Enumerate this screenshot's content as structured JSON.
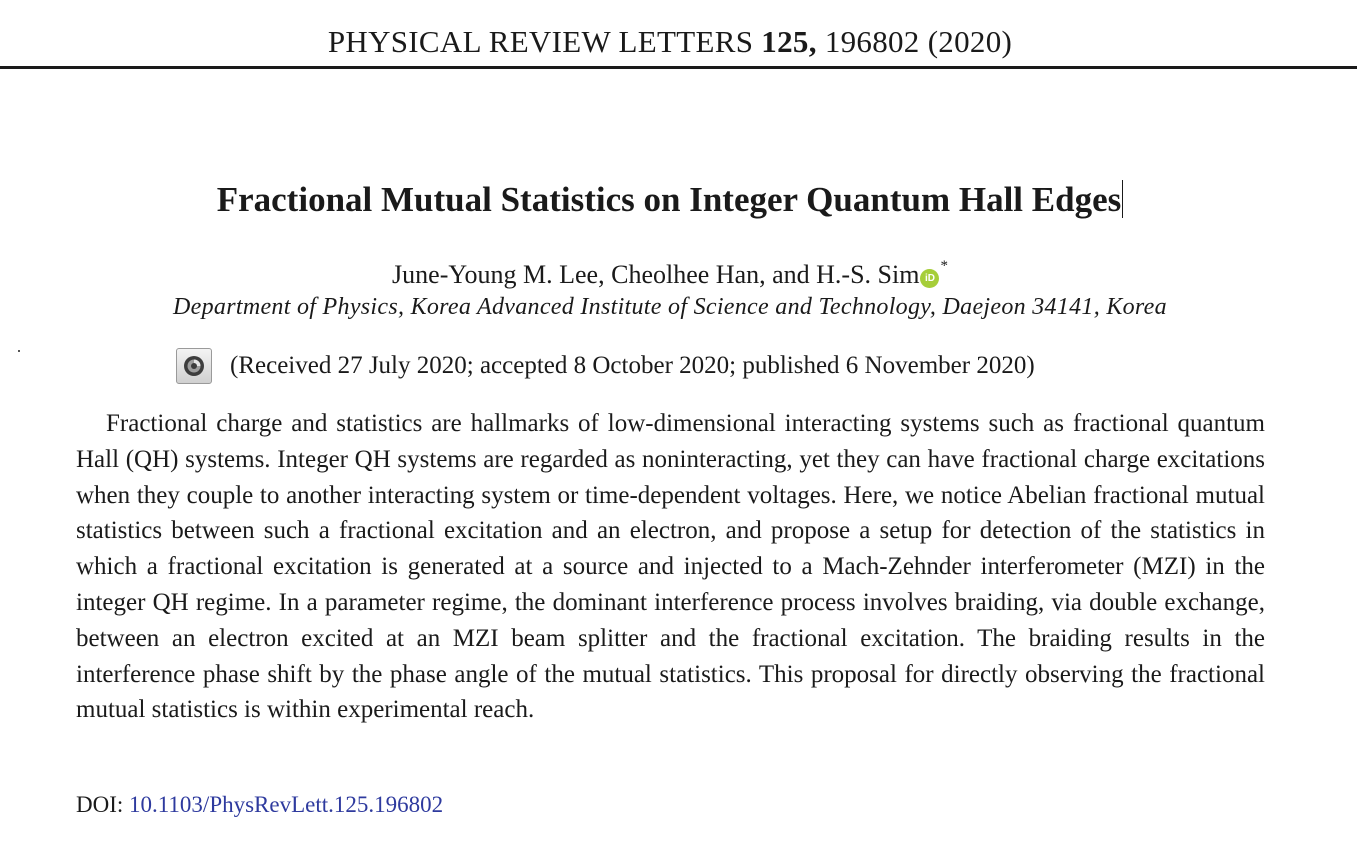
{
  "journal": {
    "name": "PHYSICAL REVIEW LETTERS",
    "volume": "125,",
    "article_number": "196802",
    "year": "(2020)"
  },
  "article": {
    "title": "Fractional Mutual Statistics on Integer Quantum Hall Edges",
    "authors": "June-Young M. Lee, Cheolhee Han, and H.-S. Sim",
    "orcid_label": "iD",
    "corresponding_mark": "*",
    "affiliation": "Department of Physics, Korea Advanced Institute of Science and Technology, Daejeon 34141, Korea",
    "dates": "(Received 27 July 2020; accepted 8 October 2020; published 6 November 2020)",
    "abstract": "Fractional charge and statistics are hallmarks of low-dimensional interacting systems such as fractional quantum Hall (QH) systems. Integer QH systems are regarded as noninteracting, yet they can have fractional charge excitations when they couple to another interacting system or time-dependent voltages. Here, we notice Abelian fractional mutual statistics between such a fractional excitation and an electron, and propose a setup for detection of the statistics in which a fractional excitation is generated at a source and injected to a Mach-Zehnder interferometer (MZI) in the integer QH regime. In a parameter regime, the dominant interference process involves braiding, via double exchange, between an electron excited at an MZI beam splitter and the fractional excitation. The braiding results in the interference phase shift by the phase angle of the mutual statistics. This proposal for directly observing the fractional mutual statistics is within experimental reach.",
    "doi_label": "DOI:",
    "doi_value": "10.1103/PhysRevLett.125.196802"
  },
  "icons": {
    "orcid": "orcid-icon",
    "crossmark": "crossmark-icon"
  },
  "colors": {
    "orcid_green": "#a6ce39",
    "link_blue": "#2e3a9e",
    "text": "#1a1a1a"
  }
}
